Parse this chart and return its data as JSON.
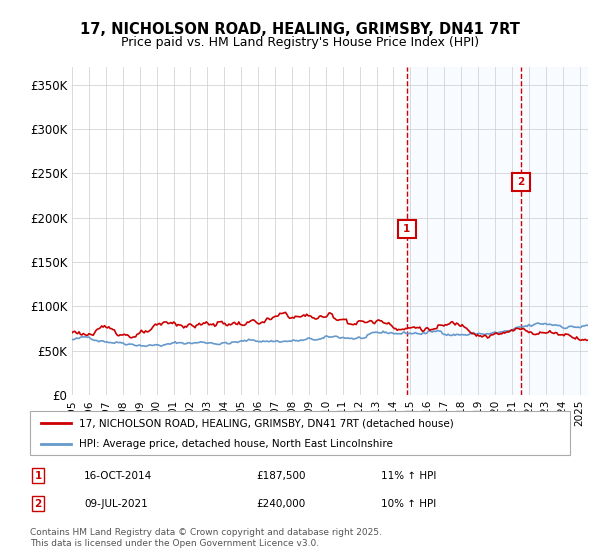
{
  "title": "17, NICHOLSON ROAD, HEALING, GRIMSBY, DN41 7RT",
  "subtitle": "Price paid vs. HM Land Registry's House Price Index (HPI)",
  "ylabel_ticks": [
    "£0",
    "£50K",
    "£100K",
    "£150K",
    "£200K",
    "£250K",
    "£300K",
    "£350K"
  ],
  "ytick_values": [
    0,
    50000,
    100000,
    150000,
    200000,
    250000,
    300000,
    350000
  ],
  "ylim": [
    0,
    370000
  ],
  "xlim_start": 1995.0,
  "xlim_end": 2025.5,
  "marker1_x": 2014.79,
  "marker1_y": 187500,
  "marker1_label": "1",
  "marker2_x": 2021.52,
  "marker2_y": 240000,
  "marker2_label": "2",
  "legend_line1": "17, NICHOLSON ROAD, HEALING, GRIMSBY, DN41 7RT (detached house)",
  "legend_line2": "HPI: Average price, detached house, North East Lincolnshire",
  "annotation1_date": "16-OCT-2014",
  "annotation1_price": "£187,500",
  "annotation1_hpi": "11% ↑ HPI",
  "annotation2_date": "09-JUL-2021",
  "annotation2_price": "£240,000",
  "annotation2_hpi": "10% ↑ HPI",
  "footer": "Contains HM Land Registry data © Crown copyright and database right 2025.\nThis data is licensed under the Open Government Licence v3.0.",
  "line1_color": "#cc0000",
  "line2_color": "#6699cc",
  "shade_color": "#ddeeff",
  "vline_color": "#cc0000",
  "background_color": "#ffffff"
}
